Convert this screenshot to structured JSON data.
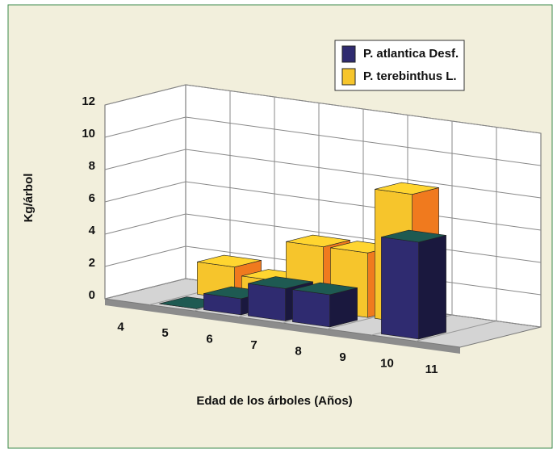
{
  "chart_data": {
    "type": "bar3d",
    "xlabel": "Edad de los árboles (Años)",
    "ylabel": "Kg/árbol",
    "categories": [
      "4",
      "5",
      "6",
      "7",
      "8",
      "9",
      "10",
      "11"
    ],
    "series": [
      {
        "name": "P. atlantica Desf.",
        "color": "#2f2b70",
        "values": [
          null,
          0,
          1,
          2,
          2,
          null,
          6,
          null
        ]
      },
      {
        "name": "P. terebinthus L.",
        "color": "#f6c52c",
        "values": [
          null,
          2,
          1.5,
          4,
          4,
          8,
          null,
          null
        ]
      }
    ],
    "ylim": [
      0,
      12
    ],
    "yticks": [
      0,
      2,
      4,
      6,
      8,
      10,
      12
    ],
    "grid": true,
    "legend": "upper right"
  }
}
